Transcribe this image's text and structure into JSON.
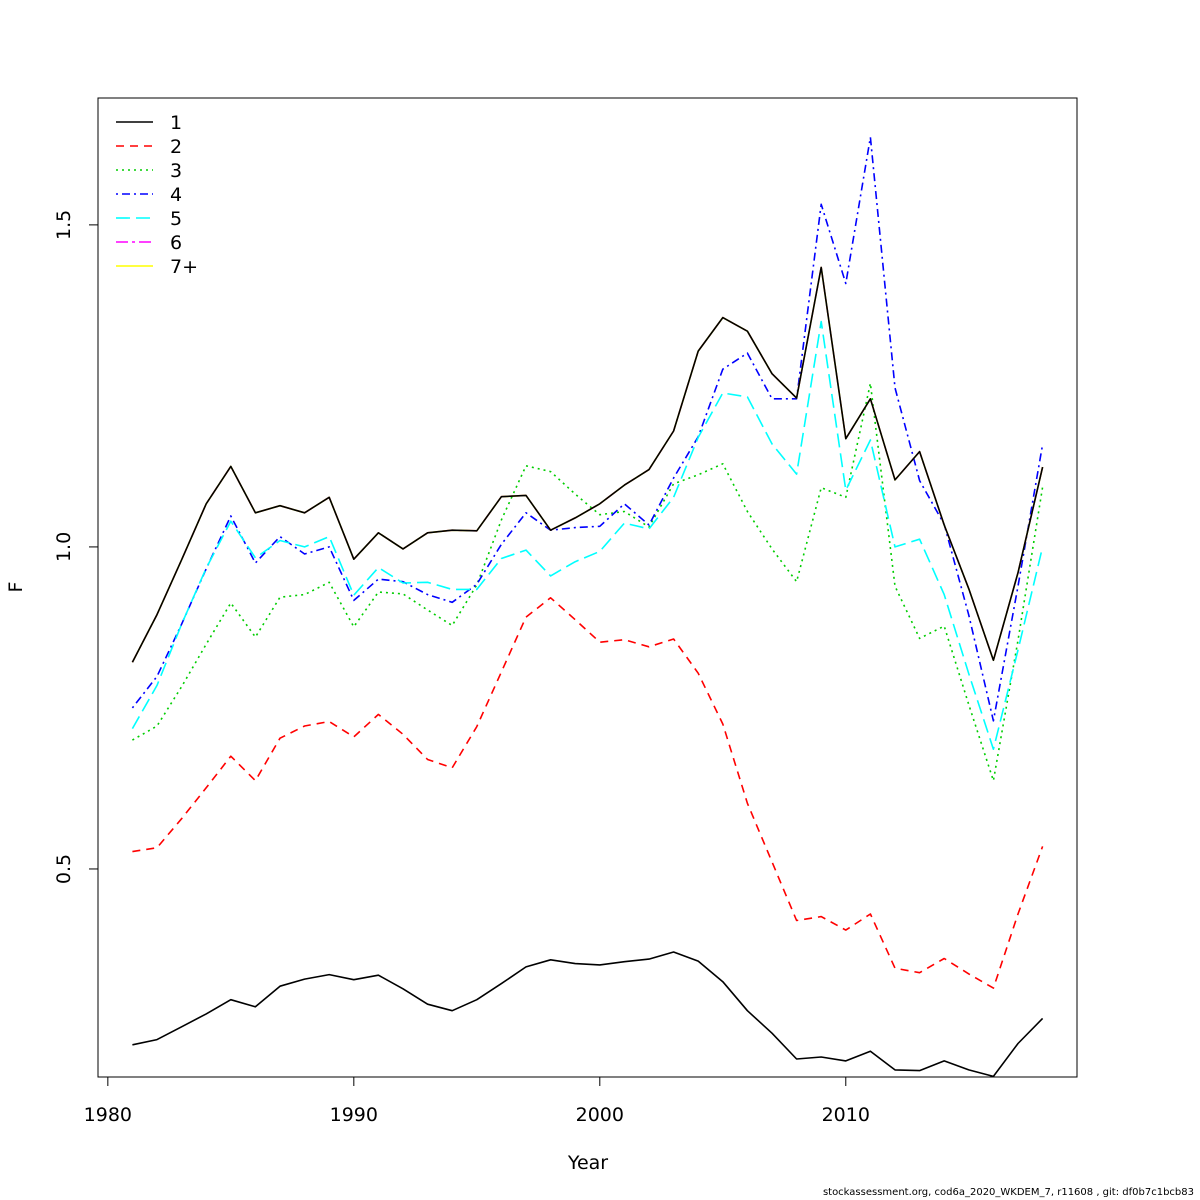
{
  "chart_data": {
    "type": "line",
    "title": "",
    "xlabel": "Year",
    "ylabel": "F",
    "xlim": [
      1979.6,
      2019.4
    ],
    "ylim": [
      0.177,
      1.697
    ],
    "x_ticks": [
      1980,
      1990,
      2000,
      2010
    ],
    "y_ticks": [
      0.5,
      1.0,
      1.5
    ],
    "grid": false,
    "legend_position": "top-left",
    "x": [
      1981,
      1982,
      1983,
      1984,
      1985,
      1986,
      1987,
      1988,
      1989,
      1990,
      1991,
      1992,
      1993,
      1994,
      1995,
      1996,
      1997,
      1998,
      1999,
      2000,
      2001,
      2002,
      2003,
      2004,
      2005,
      2006,
      2007,
      2008,
      2009,
      2010,
      2011,
      2012,
      2013,
      2014,
      2015,
      2016,
      2017,
      2018
    ],
    "series": [
      {
        "name": "1",
        "color": "#000000",
        "dash": "",
        "values": [
          0.227,
          0.235,
          0.255,
          0.275,
          0.297,
          0.286,
          0.318,
          0.329,
          0.336,
          0.328,
          0.335,
          0.314,
          0.29,
          0.28,
          0.297,
          0.322,
          0.348,
          0.359,
          0.353,
          0.351,
          0.356,
          0.36,
          0.371,
          0.357,
          0.325,
          0.28,
          0.245,
          0.205,
          0.208,
          0.202,
          0.217,
          0.188,
          0.187,
          0.202,
          0.188,
          0.178,
          0.229,
          0.268
        ]
      },
      {
        "name": "2",
        "color": "#ff0000",
        "dash": "8,6",
        "values": [
          0.527,
          0.533,
          0.578,
          0.626,
          0.675,
          0.637,
          0.703,
          0.722,
          0.729,
          0.705,
          0.74,
          0.709,
          0.67,
          0.657,
          0.721,
          0.806,
          0.891,
          0.921,
          0.887,
          0.852,
          0.856,
          0.845,
          0.857,
          0.804,
          0.725,
          0.602,
          0.511,
          0.42,
          0.426,
          0.405,
          0.43,
          0.346,
          0.339,
          0.361,
          0.337,
          0.315,
          0.43,
          0.535
        ]
      },
      {
        "name": "3",
        "color": "#00cd00",
        "dash": "2,4",
        "values": [
          0.7,
          0.722,
          0.783,
          0.849,
          0.913,
          0.86,
          0.922,
          0.926,
          0.945,
          0.876,
          0.93,
          0.927,
          0.902,
          0.878,
          0.941,
          1.042,
          1.126,
          1.117,
          1.082,
          1.05,
          1.055,
          1.031,
          1.098,
          1.112,
          1.129,
          1.055,
          0.997,
          0.946,
          1.092,
          1.077,
          1.254,
          0.939,
          0.858,
          0.877,
          0.755,
          0.637,
          0.855,
          1.093
        ]
      },
      {
        "name": "4",
        "color": "#0000ff",
        "dash": "2,4,8,4",
        "values": [
          0.75,
          0.799,
          0.88,
          0.966,
          1.048,
          0.975,
          1.016,
          0.989,
          1.0,
          0.917,
          0.95,
          0.946,
          0.926,
          0.914,
          0.942,
          1.004,
          1.053,
          1.026,
          1.03,
          1.032,
          1.067,
          1.034,
          1.107,
          1.171,
          1.276,
          1.301,
          1.23,
          1.23,
          1.532,
          1.409,
          1.636,
          1.247,
          1.103,
          1.035,
          0.894,
          0.73,
          0.939,
          1.159
        ]
      },
      {
        "name": "5",
        "color": "#00ffff",
        "dash": "14,6",
        "values": [
          0.718,
          0.785,
          0.88,
          0.967,
          1.04,
          0.983,
          1.01,
          1.0,
          1.016,
          0.925,
          0.968,
          0.944,
          0.945,
          0.934,
          0.934,
          0.982,
          0.995,
          0.955,
          0.977,
          0.993,
          1.037,
          1.028,
          1.077,
          1.17,
          1.239,
          1.233,
          1.16,
          1.113,
          1.35,
          1.088,
          1.166,
          1.0,
          1.012,
          0.926,
          0.803,
          0.686,
          0.84,
          1.0
        ]
      },
      {
        "name": "6",
        "color": "#ff00ff",
        "dash": "12,4,3,4",
        "values": [
          0.821,
          0.895,
          0.98,
          1.067,
          1.125,
          1.053,
          1.064,
          1.053,
          1.077,
          0.981,
          1.022,
          0.997,
          1.022,
          1.026,
          1.025,
          1.078,
          1.08,
          1.026,
          1.045,
          1.067,
          1.096,
          1.12,
          1.18,
          1.304,
          1.356,
          1.335,
          1.269,
          1.231,
          1.434,
          1.168,
          1.23,
          1.104,
          1.148,
          1.034,
          0.935,
          0.824,
          0.96,
          1.124
        ]
      },
      {
        "name": "7+",
        "color": "#ffff00",
        "dash": "",
        "values": [
          0.821,
          0.895,
          0.98,
          1.067,
          1.125,
          1.053,
          1.064,
          1.053,
          1.077,
          0.981,
          1.022,
          0.997,
          1.022,
          1.026,
          1.025,
          1.078,
          1.08,
          1.026,
          1.045,
          1.067,
          1.096,
          1.12,
          1.18,
          1.304,
          1.356,
          1.335,
          1.269,
          1.231,
          1.434,
          1.168,
          1.23,
          1.104,
          1.148,
          1.034,
          0.935,
          0.824,
          0.96,
          1.124
        ]
      },
      {
        "name": "",
        "color": "#000000",
        "dash": "",
        "values": [
          0.821,
          0.895,
          0.98,
          1.067,
          1.125,
          1.053,
          1.064,
          1.053,
          1.077,
          0.981,
          1.022,
          0.997,
          1.022,
          1.026,
          1.025,
          1.078,
          1.08,
          1.026,
          1.045,
          1.067,
          1.096,
          1.12,
          1.18,
          1.304,
          1.356,
          1.335,
          1.269,
          1.231,
          1.434,
          1.168,
          1.23,
          1.104,
          1.148,
          1.034,
          0.935,
          0.824,
          0.96,
          1.124
        ]
      }
    ]
  },
  "footnote": "stockassessment.org, cod6a_2020_WKDEM_7, r11608 , git: df0b7c1bcb83"
}
